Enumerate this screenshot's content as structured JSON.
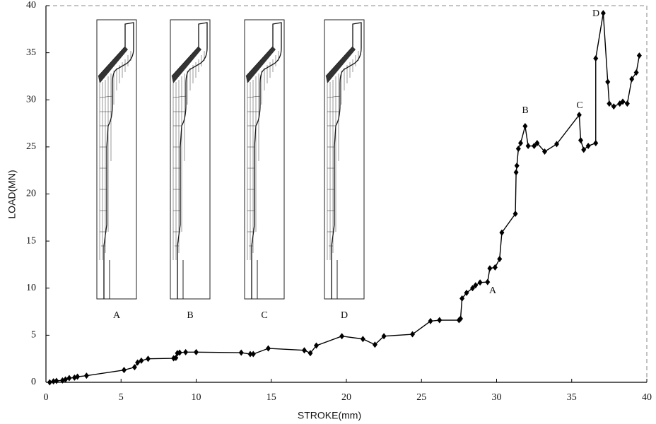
{
  "chart_data": {
    "type": "line",
    "xlabel": "STROKE(mm)",
    "ylabel": "LOAD(MN)",
    "x": [
      0.25,
      0.5,
      0.7,
      1.1,
      1.3,
      1.55,
      1.9,
      2.1,
      2.7,
      5.2,
      5.9,
      6.1,
      6.35,
      6.8,
      8.5,
      8.65,
      8.75,
      8.9,
      9.3,
      10,
      13,
      13.6,
      13.8,
      14.8,
      17.2,
      17.6,
      18,
      19.7,
      21.1,
      21.9,
      22.5,
      24.4,
      25.6,
      26.2,
      27.5,
      27.6,
      27.7,
      28,
      28.4,
      28.6,
      28.9,
      29.4,
      29.55,
      29.9,
      30.2,
      30.35,
      31.25,
      31.3,
      31.35,
      31.45,
      31.6,
      31.9,
      32.1,
      32.5,
      32.7,
      33.2,
      34,
      35.5,
      35.6,
      35.8,
      36.1,
      36.6,
      36.6,
      37.1,
      37.4,
      37.5,
      37.8,
      38.2,
      38.4,
      38.7,
      39,
      39.3,
      39.5
    ],
    "series": [
      {
        "color": "#000000",
        "values": [
          0,
          0.1,
          0.15,
          0.2,
          0.3,
          0.45,
          0.5,
          0.6,
          0.7,
          1.3,
          1.6,
          2.1,
          2.3,
          2.5,
          2.55,
          2.6,
          3.1,
          3.15,
          3.2,
          3.2,
          3.15,
          3.0,
          3.0,
          3.6,
          3.4,
          3.1,
          3.9,
          4.9,
          4.6,
          4.0,
          4.9,
          5.1,
          6.5,
          6.6,
          6.6,
          6.75,
          8.9,
          9.5,
          10,
          10.3,
          10.6,
          10.65,
          12.1,
          12.2,
          13.1,
          15.9,
          17.9,
          22.3,
          23,
          24.8,
          25.4,
          27.2,
          25.1,
          25.1,
          25.4,
          24.5,
          25.3,
          28.4,
          25.7,
          24.7,
          25.1,
          25.4,
          34.4,
          39.2,
          31.9,
          29.6,
          29.3,
          29.6,
          29.8,
          29.6,
          32.2,
          32.9,
          34.7
        ]
      }
    ],
    "xlim": [
      0,
      40
    ],
    "ylim": [
      0,
      40
    ],
    "xticks": [
      0,
      5,
      10,
      15,
      20,
      25,
      30,
      35,
      40
    ],
    "yticks": [
      0,
      5,
      10,
      15,
      20,
      25,
      30,
      35,
      40
    ],
    "annotations": [
      "A",
      "B",
      "C",
      "D"
    ],
    "inset_labels": [
      "A",
      "B",
      "C",
      "D"
    ],
    "grid": false
  }
}
